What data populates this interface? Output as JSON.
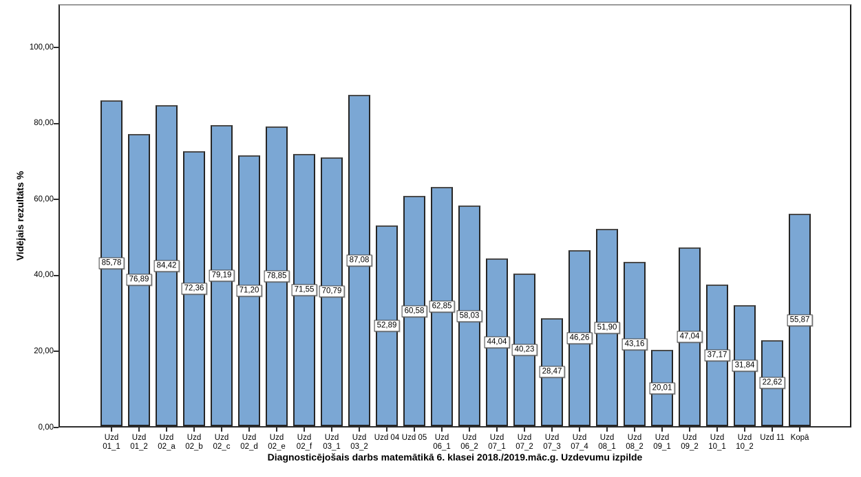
{
  "figure": {
    "background": "#ffffff"
  },
  "chart_data": {
    "type": "bar",
    "title": "",
    "xlabel": "Diagnosticējošais darbs matemātikā 6. klasei 2018./2019.māc.g. Uzdevumu izpilde",
    "ylabel": "Vidējais rezultāts %",
    "categories": [
      "Uzd 01_1",
      "Uzd 01_2",
      "Uzd 02_a",
      "Uzd 02_b",
      "Uzd 02_c",
      "Uzd 02_d",
      "Uzd 02_e",
      "Uzd 02_f",
      "Uzd 03_1",
      "Uzd 03_2",
      "Uzd 04",
      "Uzd 05",
      "Uzd 06_1",
      "Uzd 06_2",
      "Uzd 07_1",
      "Uzd 07_2",
      "Uzd 07_3",
      "Uzd 07_4",
      "Uzd 08_1",
      "Uzd 08_2",
      "Uzd 09_1",
      "Uzd 09_2",
      "Uzd 10_1",
      "Uzd 10_2",
      "Uzd 11",
      "Kopā"
    ],
    "category_label_lines": [
      [
        "Uzd",
        "01_1"
      ],
      [
        "Uzd",
        "01_2"
      ],
      [
        "Uzd",
        "02_a"
      ],
      [
        "Uzd",
        "02_b"
      ],
      [
        "Uzd",
        "02_c"
      ],
      [
        "Uzd",
        "02_d"
      ],
      [
        "Uzd",
        "02_e"
      ],
      [
        "Uzd",
        "02_f"
      ],
      [
        "Uzd",
        "03_1"
      ],
      [
        "Uzd",
        "03_2"
      ],
      [
        "Uzd 04"
      ],
      [
        "Uzd 05"
      ],
      [
        "Uzd",
        "06_1"
      ],
      [
        "Uzd",
        "06_2"
      ],
      [
        "Uzd",
        "07_1"
      ],
      [
        "Uzd",
        "07_2"
      ],
      [
        "Uzd",
        "07_3"
      ],
      [
        "Uzd",
        "07_4"
      ],
      [
        "Uzd",
        "08_1"
      ],
      [
        "Uzd",
        "08_2"
      ],
      [
        "Uzd",
        "09_1"
      ],
      [
        "Uzd",
        "09_2"
      ],
      [
        "Uzd",
        "10_1"
      ],
      [
        "Uzd",
        "10_2"
      ],
      [
        "Uzd 11"
      ],
      [
        "Kopā"
      ]
    ],
    "values": [
      85.78,
      76.89,
      84.42,
      72.36,
      79.19,
      71.2,
      78.85,
      71.55,
      70.79,
      87.08,
      52.89,
      60.58,
      62.85,
      58.03,
      44.04,
      40.23,
      28.47,
      46.26,
      51.9,
      43.16,
      20.01,
      47.04,
      37.17,
      31.84,
      22.62,
      55.87
    ],
    "value_labels": [
      "85,78",
      "76,89",
      "84,42",
      "72,36",
      "79,19",
      "71,20",
      "78,85",
      "71,55",
      "70,79",
      "87,08",
      "52,89",
      "60,58",
      "62,85",
      "58,03",
      "44,04",
      "40,23",
      "28,47",
      "46,26",
      "51,90",
      "43,16",
      "20,01",
      "47,04",
      "37,17",
      "31,84",
      "22,62",
      "55,87"
    ],
    "yticks": [
      0,
      20,
      40,
      60,
      80,
      100
    ],
    "ytick_labels": [
      "0,00",
      "20,00",
      "40,00",
      "60,00",
      "80,00",
      "100,00"
    ],
    "ylim": [
      0,
      111.4
    ],
    "grid": false,
    "legend": "none",
    "bar_color": "#7BA7D4",
    "bar_border_color": "#262626",
    "value_label_position": "middle-of-bar"
  }
}
